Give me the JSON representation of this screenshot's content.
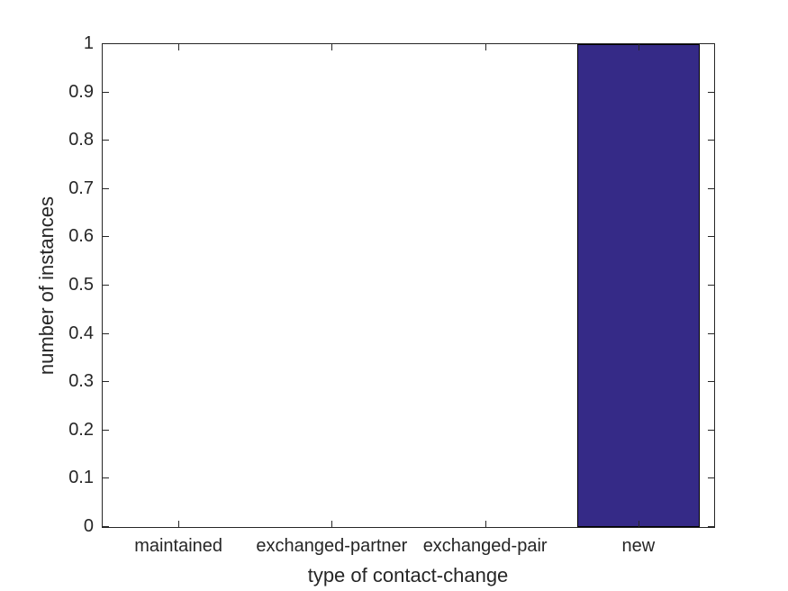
{
  "figure": {
    "background_color": "#ffffff"
  },
  "chart_data": {
    "type": "bar",
    "title": "",
    "categories": [
      "maintained",
      "exchanged-partner",
      "exchanged-pair",
      "new"
    ],
    "values": [
      0,
      0,
      0,
      1
    ],
    "xlabel": "type of contact-change",
    "ylabel": "number of instances",
    "ylim": [
      0,
      1
    ],
    "yticks": [
      0,
      0.1,
      0.2,
      0.3,
      0.4,
      0.5,
      0.6,
      0.7,
      0.8,
      0.9,
      1
    ],
    "ytick_labels": [
      "0",
      "0.1",
      "0.2",
      "0.3",
      "0.4",
      "0.5",
      "0.6",
      "0.7",
      "0.8",
      "0.9",
      "1"
    ],
    "bar_width_fraction": 0.8,
    "bar_fill_color": "#352A87",
    "bar_edge_color": "#000000",
    "axis_color": "#262626",
    "text_color": "#262626",
    "grid": false,
    "box": true,
    "tick_direction": "in",
    "legend": null
  }
}
